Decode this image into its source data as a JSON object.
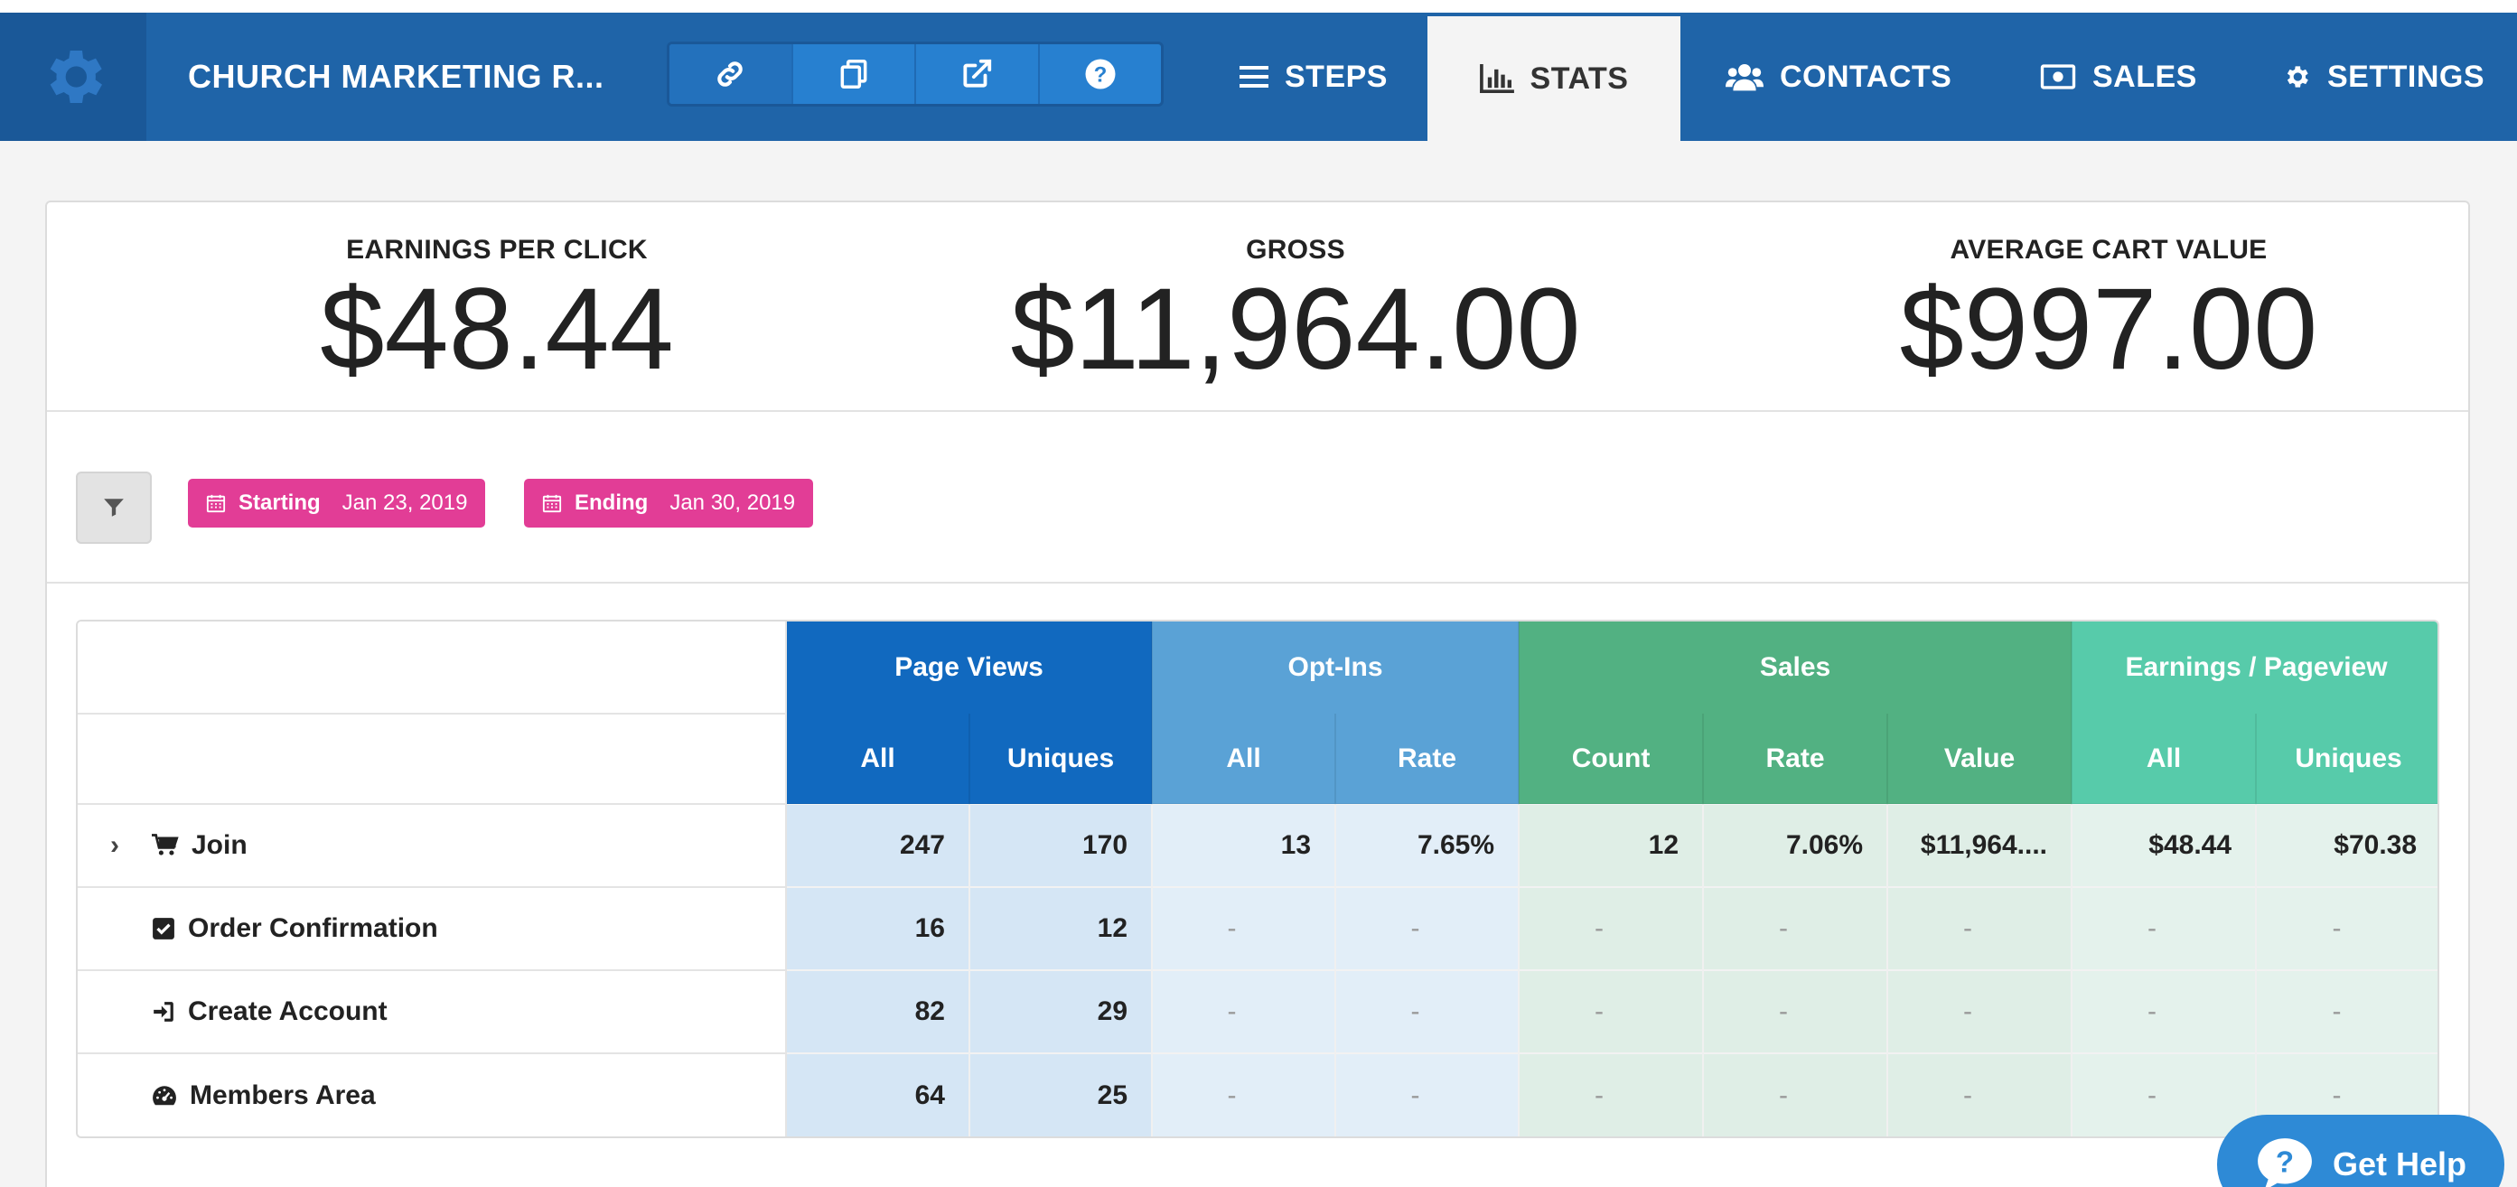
{
  "nav": {
    "title": "CHURCH MARKETING R...",
    "tabs": [
      {
        "label": "STEPS",
        "icon": "list-icon"
      },
      {
        "label": "STATS",
        "icon": "bar-chart-icon",
        "active": true
      },
      {
        "label": "CONTACTS",
        "icon": "users-icon"
      },
      {
        "label": "SALES",
        "icon": "money-icon"
      },
      {
        "label": "SETTINGS",
        "icon": "gear-icon"
      }
    ],
    "tools": [
      "link-icon",
      "copy-icon",
      "external-link-icon",
      "help-icon"
    ]
  },
  "kpis": [
    {
      "label": "EARNINGS PER CLICK",
      "value": "$48.44"
    },
    {
      "label": "GROSS",
      "value": "$11,964.00"
    },
    {
      "label": "AVERAGE CART VALUE",
      "value": "$997.00"
    }
  ],
  "filters": {
    "start_key": "Starting",
    "start_date": "Jan 23, 2019",
    "end_key": "Ending",
    "end_date": "Jan 30, 2019"
  },
  "table": {
    "groups": [
      "Page Views",
      "Opt-Ins",
      "Sales",
      "Earnings / Pageview"
    ],
    "subheaders": [
      "All",
      "Uniques",
      "All",
      "Rate",
      "Count",
      "Rate",
      "Value",
      "All",
      "Uniques"
    ],
    "rows": [
      {
        "name": "Join",
        "cells": [
          "247",
          "170",
          "13",
          "7.65%",
          "12",
          "7.06%",
          "$11,964....",
          "$48.44",
          "$70.38"
        ]
      },
      {
        "name": "Order Confirmation",
        "cells": [
          "16",
          "12",
          "-",
          "-",
          "-",
          "-",
          "-",
          "-",
          "-"
        ]
      },
      {
        "name": "Create Account",
        "cells": [
          "82",
          "29",
          "-",
          "-",
          "-",
          "-",
          "-",
          "-",
          "-"
        ]
      },
      {
        "name": "Members Area",
        "cells": [
          "64",
          "25",
          "-",
          "-",
          "-",
          "-",
          "-",
          "-",
          "-"
        ]
      }
    ]
  },
  "help": {
    "label": "Get Help"
  },
  "colors": {
    "nav": "#1f64a8",
    "page_views": "#1169bf",
    "opt_ins": "#5aa2d6",
    "sales": "#52b182",
    "earnings": "#57cbaa",
    "date_pill": "#e23d96"
  }
}
